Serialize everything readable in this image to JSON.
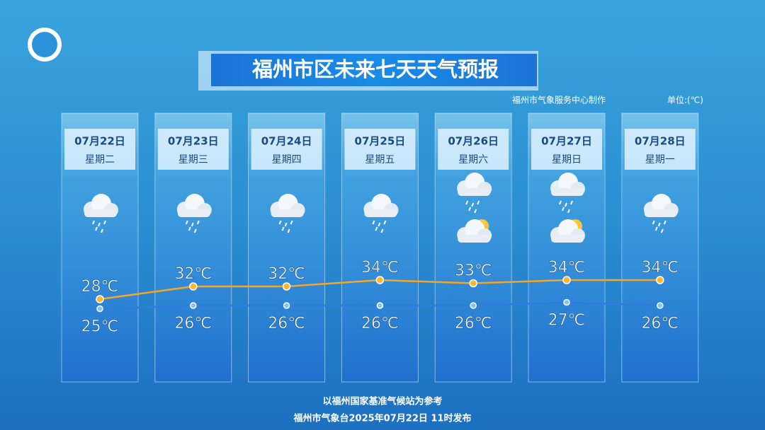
{
  "header": {
    "title": "福州市区未来七天天气预报",
    "credit": "福州市气象服务中心制作",
    "unit": "单位:(℃)"
  },
  "chart_data": {
    "type": "line",
    "categories": [
      "07月22日",
      "07月23日",
      "07月24日",
      "07月25日",
      "07月26日",
      "07月27日",
      "07月28日"
    ],
    "weekdays": [
      "星期二",
      "星期三",
      "星期四",
      "星期五",
      "星期六",
      "星期日",
      "星期一"
    ],
    "series": [
      {
        "color": "#f5a623",
        "values": [
          28,
          32,
          32,
          34,
          33,
          34,
          34
        ],
        "value_labels": [
          "28℃",
          "32℃",
          "32℃",
          "34℃",
          "33℃",
          "34℃",
          "34℃"
        ]
      },
      {
        "color": "#2f7de0",
        "values": [
          25,
          26,
          26,
          26,
          26,
          27,
          26
        ],
        "value_labels": [
          "25℃",
          "26℃",
          "26℃",
          "26℃",
          "26℃",
          "27℃",
          "26℃"
        ]
      }
    ]
  },
  "footer": {
    "basis": "以福州国家基准气候站为参考",
    "issued": "福州市气象台2025年07月22日 11时发布"
  }
}
